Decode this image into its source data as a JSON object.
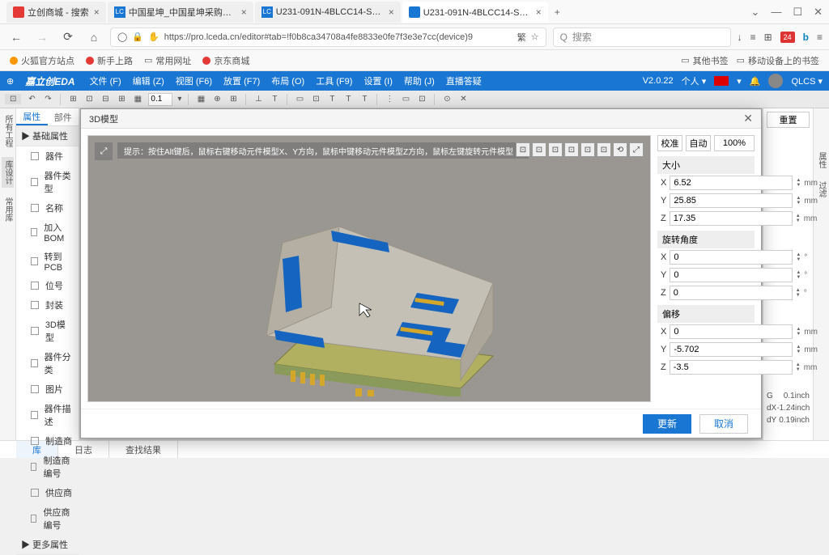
{
  "tabs": [
    {
      "icon": "#e53935",
      "label": "立创商城 - 搜索"
    },
    {
      "icon": "#1976d2",
      "label": "中国星坤_中国星坤采购信息-立"
    },
    {
      "icon": "#1976d2",
      "label": "U231-091N-4BLCC14-S5_ (XJ"
    },
    {
      "icon": "#1976d2",
      "label": "U231-091N-4BLCC14-S-5 | 嘉",
      "active": true
    }
  ],
  "window_ctrl": {
    "min": "—",
    "max": "☐",
    "close": "✕",
    "down": "⌄"
  },
  "url": {
    "shield": "◯",
    "lock": "🔒",
    "hand": "✋",
    "text": "https://pro.lceda.cn/editor#tab=!f0b8ca34708a4fe8833e0fe7f3e3e7cc(device)9",
    "trans": "繁",
    "star": "☆"
  },
  "search_placeholder": "搜索",
  "righticons": {
    "dl": "↓",
    "ham": "≡",
    "noti": "24",
    "b": "b",
    "menu": "≡"
  },
  "bookmarks": {
    "items": [
      {
        "dot": "#ff9800",
        "label": "火狐官方站点"
      },
      {
        "dot": "#e53935",
        "label": "新手上路"
      },
      {
        "dot": "",
        "label": "常用网址"
      },
      {
        "dot": "#e53935",
        "label": "京东商城"
      }
    ],
    "right": [
      {
        "icon": "▭",
        "label": "其他书签"
      },
      {
        "icon": "▭",
        "label": "移动设备上的书签"
      }
    ]
  },
  "appbar": {
    "logo": "嘉立创EDA",
    "menus": [
      "文件 (F)",
      "编辑 (Z)",
      "视图 (F6)",
      "放置 (F7)",
      "布局 (O)",
      "工具 (F9)",
      "设置 (I)",
      "帮助 (J)",
      "直播答疑"
    ],
    "version": "V2.0.22",
    "user": "个人 ▾",
    "qlcs": "QLCS ▾"
  },
  "toolbar": {
    "items": [
      "▦",
      "↶",
      "↷",
      "|",
      "⊞",
      "⊡",
      "⊟",
      "⊞",
      "▦",
      "0.1 ▾",
      "|",
      "▦",
      "⊕",
      "⊞",
      "|",
      "⊥",
      "T",
      "|",
      "▭",
      "⊡",
      "T",
      "T",
      "T",
      "|",
      "⋮",
      "▭",
      "⊡",
      "|",
      "⊙",
      "✕",
      "|"
    ]
  },
  "vrail_left": [
    "所有工程",
    "库设计",
    "常用库"
  ],
  "vrail_right": [
    "属性",
    "过滤"
  ],
  "leftpanel": {
    "tabs": [
      "属性",
      "部件"
    ],
    "section": "▶ 基础属性",
    "items": [
      "器件",
      "器件类型",
      "名称",
      "加入BOM",
      "转到PCB",
      "位号",
      "封装",
      "3D模型",
      "器件分类",
      "图片",
      "器件描述",
      "制造商",
      "制造商编号",
      "供应商",
      "供应商编号"
    ],
    "more": "▶ 更多属性"
  },
  "rightpanel": {
    "btn": "重置",
    "rows": [
      {
        "k": "G",
        "v": "0.1inch"
      },
      {
        "k": "dX",
        "v": "-1.24inch"
      },
      {
        "k": "dY",
        "v": "0.19inch"
      }
    ]
  },
  "modal": {
    "title": "3D模型",
    "hint": "提示：按住Alt键后，鼠标右键移动元件模型X、Y方向，鼠标中键移动元件模型Z方向，鼠标左键旋转元件模型",
    "tabs": [
      "校准",
      "自动"
    ],
    "pct": "100%",
    "groups": [
      {
        "name": "大小",
        "rows": [
          {
            "k": "X",
            "v": "6.52",
            "u": "mm"
          },
          {
            "k": "Y",
            "v": "25.85",
            "u": "mm"
          },
          {
            "k": "Z",
            "v": "17.35",
            "u": "mm"
          }
        ]
      },
      {
        "name": "旋转角度",
        "rows": [
          {
            "k": "X",
            "v": "0",
            "u": "°"
          },
          {
            "k": "Y",
            "v": "0",
            "u": "°"
          },
          {
            "k": "Z",
            "v": "0",
            "u": "°"
          }
        ]
      },
      {
        "name": "偏移",
        "rows": [
          {
            "k": "X",
            "v": "0",
            "u": "mm"
          },
          {
            "k": "Y",
            "v": "-5.702",
            "u": "mm"
          },
          {
            "k": "Z",
            "v": "-3.5",
            "u": "mm"
          }
        ]
      }
    ],
    "update": "更新",
    "cancel": "取消"
  },
  "bottombar": [
    "库",
    "日志",
    "查找结果"
  ],
  "colors": {
    "blue": "#1976d2",
    "metal": "#c5c0b6",
    "metal_dark": "#aba59a",
    "plastic_blue": "#1565c0",
    "gold": "#d4a62a",
    "pcb_green": "#8a9a5b"
  }
}
